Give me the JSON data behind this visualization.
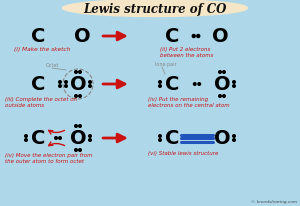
{
  "title": "Lewis structure of CO",
  "bg_color": "#aed8ea",
  "title_bg": "#f5e6c8",
  "title_color": "#111111",
  "red": "#cc1111",
  "blue": "#2255bb",
  "gray": "#888888",
  "step1_label": "(i) Make the sketch",
  "step2_label": "(ii) Put 2 electrons\nbetween the atoms",
  "step3_label": "(iii) Complete the octet on\noutside atoms",
  "step4_label": "(iv) Put the remaining\nelectrons on the central atom",
  "step5_label": "(iv) Move the electron pair from\nthe outer atom to form octet",
  "step6_label": "(vi) Stable lewis structure",
  "watermark": "© knordslearing.com",
  "octet_label": "Octet",
  "lone_pair_label": "lone pair"
}
